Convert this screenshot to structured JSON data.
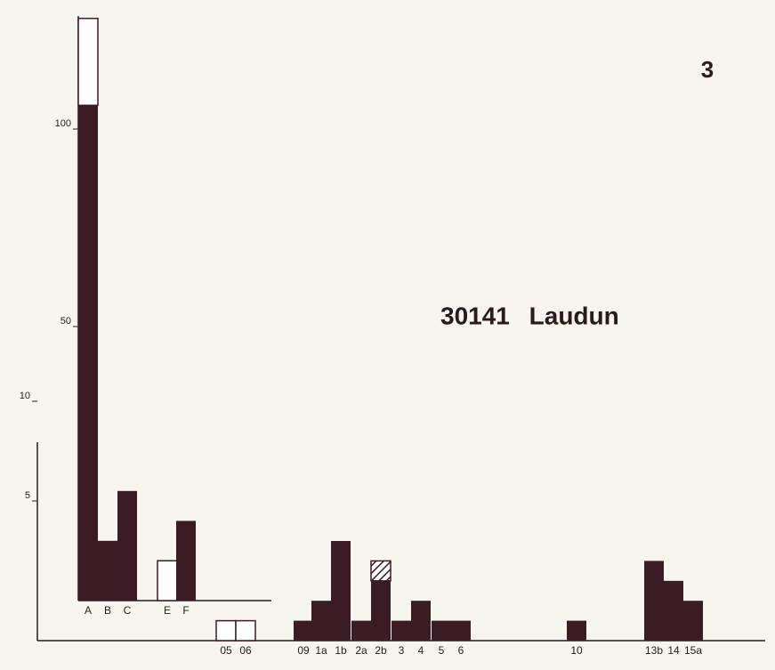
{
  "chart_data": {
    "type": "bar",
    "title": "30141 Laudun",
    "page_number": "3",
    "categories": [
      "A",
      "B",
      "C",
      "E",
      "F",
      "05",
      "06",
      "09",
      "1a",
      "1b",
      "2a",
      "2b",
      "3",
      "4",
      "5",
      "6",
      "10",
      "13b",
      "14",
      "15a"
    ],
    "solid": [
      106,
      3,
      5.5,
      0,
      4,
      0,
      0,
      1,
      2,
      5,
      1,
      3,
      1,
      2,
      1,
      1,
      1,
      4,
      3,
      2
    ],
    "open": [
      22,
      0,
      0,
      2,
      0,
      1,
      1,
      0,
      0,
      0,
      0,
      0,
      0,
      0,
      0,
      0,
      0,
      0,
      0,
      0
    ],
    "hatched": [
      0,
      0,
      0,
      0,
      0,
      0,
      0,
      0,
      0,
      0,
      0,
      1,
      0,
      0,
      0,
      0,
      0,
      0,
      0,
      0
    ],
    "color": "#3b1b24",
    "yticks": [
      5,
      10
    ],
    "yticks_upper": [
      50,
      100
    ]
  }
}
